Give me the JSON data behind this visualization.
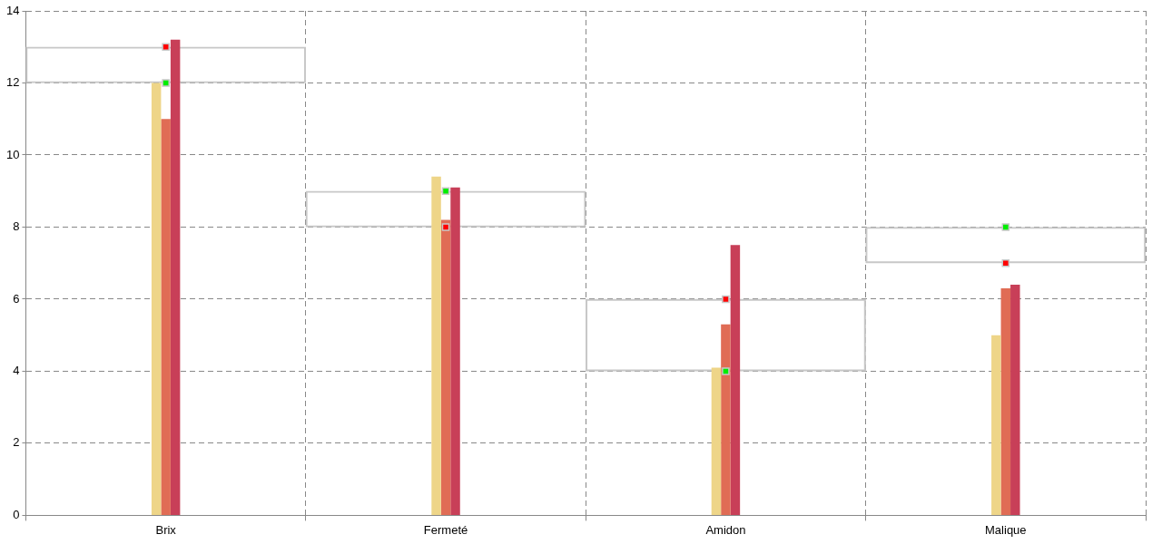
{
  "chart_data": {
    "type": "bar",
    "categories": [
      "Brix",
      "Fermeté",
      "Amidon",
      "Malique"
    ],
    "ylim": [
      0,
      14
    ],
    "yticks": [
      0,
      2,
      4,
      6,
      8,
      10,
      12,
      14
    ],
    "grid": true,
    "line_style": "dashed",
    "legend": false,
    "series": [
      {
        "color": "#eed588",
        "values": [
          12,
          9.4,
          4.1,
          5.0
        ]
      },
      {
        "color": "#e06c55",
        "values": [
          11,
          8.2,
          5.3,
          6.3
        ]
      },
      {
        "color": "#c83f58",
        "values": [
          13.2,
          9.1,
          7.5,
          6.4
        ]
      },
      {
        "color": "#c8c8c8",
        "base": [
          12,
          8,
          4,
          7
        ],
        "values": [
          1,
          1,
          2,
          1
        ]
      },
      {
        "type": "scatter",
        "marker": "square",
        "color": "#00ee00",
        "x": [
          "Brix",
          "Fermeté",
          "Amidon",
          "Malique"
        ],
        "values": [
          12,
          9,
          4,
          8
        ]
      },
      {
        "type": "scatter",
        "marker": "square",
        "color": "#ff0000",
        "x": [
          "Brix",
          "Fermeté",
          "Amidon",
          "Malique"
        ],
        "values": [
          13,
          8,
          6,
          7
        ]
      }
    ]
  }
}
